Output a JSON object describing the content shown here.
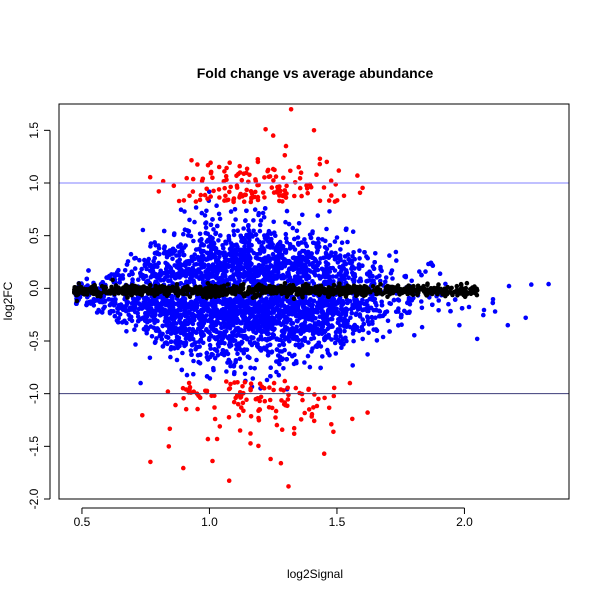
{
  "chart_data": {
    "type": "scatter",
    "title": "Fold change vs average abundance",
    "xlabel": "log2Signal",
    "ylabel": "log2FC",
    "xlim": [
      0.41,
      2.41
    ],
    "ylim": [
      -2.0,
      1.75
    ],
    "x_ticks": [
      "0.5",
      "1.0",
      "1.5",
      "2.0"
    ],
    "x_tick_values": [
      0.5,
      1.0,
      1.5,
      2.0
    ],
    "y_ticks": [
      "-2.0",
      "-1.5",
      "-1.0",
      "-0.5",
      "0.0",
      "0.5",
      "1.0",
      "1.5"
    ],
    "y_tick_values": [
      -2.0,
      -1.5,
      -1.0,
      -0.5,
      0.0,
      0.5,
      1.0,
      1.5
    ],
    "reference_lines": [
      {
        "axis": "y",
        "value": 1.0,
        "color": "#8080ff"
      },
      {
        "axis": "y",
        "value": -1.0,
        "color": "#3c3c78"
      }
    ],
    "grid": false,
    "series": [
      {
        "color": "#0000ff",
        "description_values": "bulk of points, |log2FC| < 1 (approx. envelope)",
        "x_range": [
          0.47,
          2.33
        ],
        "y_range": [
          -0.97,
          0.98
        ]
      },
      {
        "color": "#ff0000",
        "description_values": "points with |log2FC| > ~0.8 in the upper and lower tails",
        "x_range": [
          0.7,
          1.7
        ],
        "y_range": [
          -1.88,
          1.7
        ]
      },
      {
        "color": "#000000",
        "description_values": "points near log2FC = 0",
        "x_range": [
          0.47,
          2.05
        ],
        "y_range": [
          -0.12,
          0.12
        ]
      }
    ],
    "sample_points": {
      "red": [
        [
          1.32,
          1.7
        ],
        [
          1.22,
          1.51
        ],
        [
          1.41,
          1.5
        ],
        [
          1.25,
          1.45
        ],
        [
          1.3,
          1.35
        ],
        [
          1.19,
          1.2
        ],
        [
          1.12,
          1.1
        ],
        [
          1.35,
          1.15
        ],
        [
          1.46,
          1.2
        ],
        [
          1.58,
          1.07
        ],
        [
          1.28,
          -1.66
        ],
        [
          1.31,
          -1.88
        ],
        [
          1.24,
          -1.62
        ],
        [
          1.45,
          -1.57
        ],
        [
          1.03,
          -1.43
        ],
        [
          1.12,
          -1.35
        ],
        [
          1.56,
          -1.24
        ],
        [
          1.62,
          -1.18
        ]
      ],
      "black": [
        [
          0.48,
          -0.12
        ],
        [
          0.55,
          0.03
        ],
        [
          0.62,
          0.08
        ],
        [
          0.9,
          0.0
        ],
        [
          1.3,
          0.0
        ],
        [
          1.8,
          0.02
        ],
        [
          1.97,
          0.02
        ],
        [
          2.05,
          -0.02
        ]
      ],
      "blue_outliers": [
        [
          2.33,
          0.04
        ],
        [
          2.24,
          -0.28
        ],
        [
          2.17,
          -0.35
        ],
        [
          2.12,
          -0.22
        ],
        [
          1.98,
          -0.35
        ],
        [
          2.05,
          -0.48
        ],
        [
          1.1,
          0.75
        ],
        [
          1.2,
          -0.95
        ],
        [
          0.73,
          -0.9
        ]
      ]
    }
  }
}
